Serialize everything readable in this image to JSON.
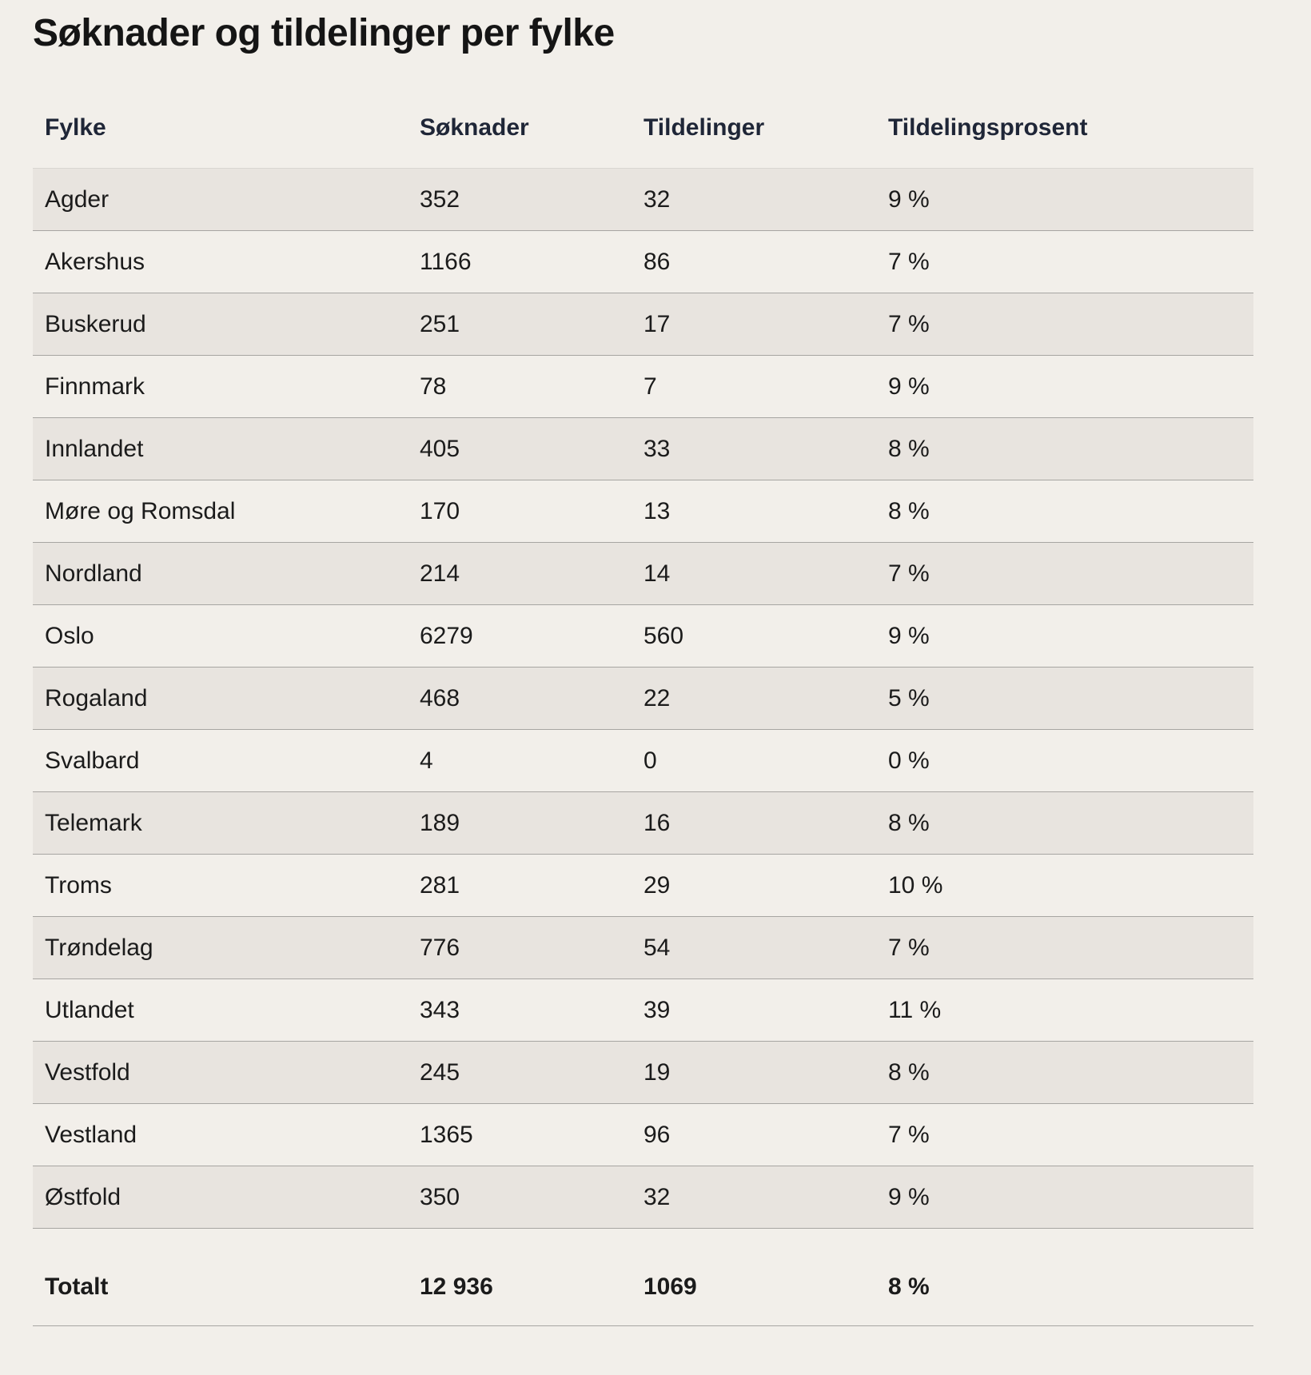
{
  "title": "Søknader og tildelinger per fylke",
  "table": {
    "headers": [
      "Fylke",
      "Søknader",
      "Tildelinger",
      "Tildelingsprosent"
    ],
    "rows": [
      [
        "Agder",
        "352",
        "32",
        "9 %"
      ],
      [
        "Akershus",
        "1166",
        "86",
        "7 %"
      ],
      [
        "Buskerud",
        "251",
        "17",
        "7 %"
      ],
      [
        "Finnmark",
        "78",
        "7",
        "9 %"
      ],
      [
        "Innlandet",
        "405",
        "33",
        "8 %"
      ],
      [
        "Møre og Romsdal",
        "170",
        "13",
        "8 %"
      ],
      [
        "Nordland",
        "214",
        "14",
        "7 %"
      ],
      [
        "Oslo",
        "6279",
        "560",
        "9 %"
      ],
      [
        "Rogaland",
        "468",
        "22",
        "5 %"
      ],
      [
        "Svalbard",
        "4",
        "0",
        "0 %"
      ],
      [
        "Telemark",
        "189",
        "16",
        "8 %"
      ],
      [
        "Troms",
        "281",
        "29",
        "10 %"
      ],
      [
        "Trøndelag",
        "776",
        "54",
        "7 %"
      ],
      [
        "Utlandet",
        "343",
        "39",
        "11 %"
      ],
      [
        "Vestfold",
        "245",
        "19",
        "8 %"
      ],
      [
        "Vestland",
        "1365",
        "96",
        "7 %"
      ],
      [
        "Østfold",
        "350",
        "32",
        "9 %"
      ]
    ],
    "total": [
      "Totalt",
      "12 936",
      "1069",
      "8 %"
    ]
  },
  "colors": {
    "background": "#f2efea",
    "row_shade": "#e8e4df",
    "header_text": "#1f2637",
    "divider": "#a7a5a2"
  }
}
